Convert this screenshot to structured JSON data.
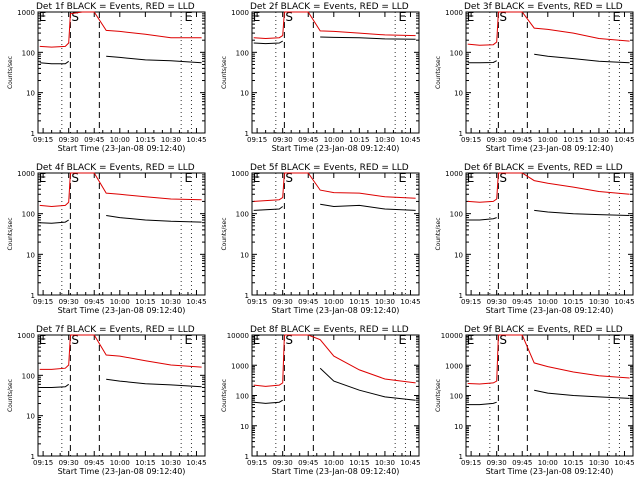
{
  "chart_data": [
    {
      "type": "line",
      "title": "Det 1f BLACK = Events, RED = LLD",
      "xlabel": "Start Time (23-Jan-08 09:12:40)",
      "ylabel": "Counts/sec",
      "ylim": [
        1,
        1000
      ],
      "log_y": true,
      "xticks": [
        "09:15",
        "09:30",
        "09:45",
        "10:00",
        "10:15",
        "10:30",
        "10:45"
      ],
      "yticks": [
        "1",
        "10",
        "100",
        "1000"
      ],
      "markers": {
        "E": "09:13",
        "S": "09:31",
        "E2": "10:38"
      },
      "series": [
        {
          "name": "BLACK = Events",
          "color": "#000000",
          "x": [
            "09:13",
            "09:20",
            "09:28",
            "09:30",
            "09:31",
            "09:48",
            "09:52",
            "10:00",
            "10:15",
            "10:30",
            "10:48"
          ],
          "values": [
            55,
            52,
            52,
            60,
            null,
            null,
            80,
            75,
            65,
            62,
            55
          ]
        },
        {
          "name": "RED = LLD",
          "color": "#dd0000",
          "x": [
            "09:13",
            "09:20",
            "09:28",
            "09:30",
            "09:31",
            "09:38",
            "09:45",
            "09:52",
            "10:00",
            "10:15",
            "10:30",
            "10:48"
          ],
          "values": [
            140,
            135,
            140,
            170,
            900,
            1000,
            1000,
            350,
            330,
            280,
            230,
            230
          ]
        }
      ]
    },
    {
      "type": "line",
      "title": "Det 2f BLACK = Events, RED = LLD",
      "xlabel": "Start Time (23-Jan-08 09:12:40)",
      "ylabel": "Counts/sec",
      "ylim": [
        1,
        1000
      ],
      "log_y": true,
      "xticks": [
        "09:15",
        "09:30",
        "09:45",
        "10:00",
        "10:15",
        "10:30",
        "10:45"
      ],
      "yticks": [
        "1",
        "10",
        "100",
        "1000"
      ],
      "markers": {
        "E": "09:13",
        "S": "09:31",
        "E2": "10:38"
      },
      "series": [
        {
          "name": "BLACK = Events",
          "color": "#000000",
          "x": [
            "09:13",
            "09:20",
            "09:28",
            "09:30",
            "09:48",
            "09:52",
            "10:00",
            "10:15",
            "10:30",
            "10:48"
          ],
          "values": [
            170,
            165,
            170,
            190,
            null,
            240,
            235,
            230,
            215,
            210
          ]
        },
        {
          "name": "RED = LLD",
          "color": "#dd0000",
          "x": [
            "09:13",
            "09:20",
            "09:28",
            "09:30",
            "09:31",
            "09:38",
            "09:45",
            "09:52",
            "10:00",
            "10:15",
            "10:30",
            "10:48"
          ],
          "values": [
            230,
            220,
            230,
            260,
            1000,
            1000,
            1000,
            340,
            330,
            300,
            270,
            260
          ]
        }
      ]
    },
    {
      "type": "line",
      "title": "Det 3f BLACK = Events, RED = LLD",
      "xlabel": "Start Time (23-Jan-08 09:12:40)",
      "ylabel": "Counts/sec",
      "ylim": [
        1,
        1000
      ],
      "log_y": true,
      "xticks": [
        "09:15",
        "09:30",
        "09:45",
        "10:00",
        "10:15",
        "10:30",
        "10:45"
      ],
      "yticks": [
        "1",
        "10",
        "100",
        "1000"
      ],
      "markers": {
        "E": "09:13",
        "S": "09:31",
        "E2": "10:38"
      },
      "series": [
        {
          "name": "BLACK = Events",
          "color": "#000000",
          "x": [
            "09:13",
            "09:20",
            "09:28",
            "09:30",
            "09:48",
            "09:52",
            "10:00",
            "10:15",
            "10:30",
            "10:48"
          ],
          "values": [
            55,
            55,
            56,
            62,
            null,
            90,
            80,
            70,
            60,
            55
          ]
        },
        {
          "name": "RED = LLD",
          "color": "#dd0000",
          "x": [
            "09:13",
            "09:20",
            "09:28",
            "09:30",
            "09:31",
            "09:38",
            "09:45",
            "09:52",
            "10:00",
            "10:15",
            "10:30",
            "10:48"
          ],
          "values": [
            160,
            150,
            155,
            180,
            1000,
            1000,
            1000,
            400,
            370,
            300,
            220,
            190
          ]
        }
      ]
    },
    {
      "type": "line",
      "title": "Det 4f BLACK = Events, RED = LLD",
      "xlabel": "Start Time (23-Jan-08 09:12:40)",
      "ylabel": "Counts/sec",
      "ylim": [
        1,
        1000
      ],
      "log_y": true,
      "xticks": [
        "09:15",
        "09:30",
        "09:45",
        "10:00",
        "10:15",
        "10:30",
        "10:45"
      ],
      "yticks": [
        "1",
        "10",
        "100",
        "1000"
      ],
      "markers": {
        "E": "09:13",
        "S": "09:31",
        "E2": "10:38"
      },
      "series": [
        {
          "name": "BLACK = Events",
          "color": "#000000",
          "x": [
            "09:13",
            "09:20",
            "09:28",
            "09:30",
            "09:48",
            "09:52",
            "10:00",
            "10:15",
            "10:30",
            "10:48"
          ],
          "values": [
            60,
            58,
            62,
            70,
            null,
            90,
            80,
            70,
            65,
            62
          ]
        },
        {
          "name": "RED = LLD",
          "color": "#dd0000",
          "x": [
            "09:13",
            "09:20",
            "09:28",
            "09:30",
            "09:31",
            "09:38",
            "09:45",
            "09:52",
            "10:00",
            "10:15",
            "10:30",
            "10:48"
          ],
          "values": [
            160,
            150,
            160,
            190,
            1000,
            1000,
            1000,
            320,
            300,
            260,
            230,
            220
          ]
        }
      ]
    },
    {
      "type": "line",
      "title": "Det 5f BLACK = Events, RED = LLD",
      "xlabel": "Start Time (23-Jan-08 09:12:40)",
      "ylabel": "Counts/sec",
      "ylim": [
        1,
        1000
      ],
      "log_y": true,
      "xticks": [
        "09:15",
        "09:30",
        "09:45",
        "10:00",
        "10:15",
        "10:30",
        "10:45"
      ],
      "yticks": [
        "1",
        "10",
        "100",
        "1000"
      ],
      "markers": {
        "E": "09:13",
        "S": "09:31",
        "E2": "10:38"
      },
      "series": [
        {
          "name": "BLACK = Events",
          "color": "#000000",
          "x": [
            "09:13",
            "09:20",
            "09:28",
            "09:30",
            "09:48",
            "09:52",
            "10:00",
            "10:15",
            "10:30",
            "10:48"
          ],
          "values": [
            120,
            125,
            130,
            150,
            null,
            170,
            150,
            160,
            130,
            120
          ]
        },
        {
          "name": "RED = LLD",
          "color": "#dd0000",
          "x": [
            "09:13",
            "09:20",
            "09:28",
            "09:30",
            "09:31",
            "09:38",
            "09:45",
            "09:52",
            "10:00",
            "10:15",
            "10:30",
            "10:48"
          ],
          "values": [
            200,
            210,
            220,
            250,
            1000,
            1000,
            1000,
            380,
            330,
            320,
            260,
            240
          ]
        }
      ]
    },
    {
      "type": "line",
      "title": "Det 6f BLACK = Events, RED = LLD",
      "xlabel": "Start Time (23-Jan-08 09:12:40)",
      "ylabel": "Counts/sec",
      "ylim": [
        1,
        1000
      ],
      "log_y": true,
      "xticks": [
        "09:15",
        "09:30",
        "09:45",
        "10:00",
        "10:15",
        "10:30",
        "10:45"
      ],
      "yticks": [
        "1",
        "10",
        "100",
        "1000"
      ],
      "markers": {
        "E": "09:13",
        "S": "09:31",
        "E2": "10:38"
      },
      "series": [
        {
          "name": "BLACK = Events",
          "color": "#000000",
          "x": [
            "09:13",
            "09:20",
            "09:28",
            "09:30",
            "09:48",
            "09:52",
            "10:00",
            "10:15",
            "10:30",
            "10:48"
          ],
          "values": [
            70,
            70,
            75,
            80,
            null,
            120,
            110,
            100,
            95,
            90
          ]
        },
        {
          "name": "RED = LLD",
          "color": "#dd0000",
          "x": [
            "09:13",
            "09:20",
            "09:28",
            "09:30",
            "09:31",
            "09:38",
            "09:45",
            "09:52",
            "10:00",
            "10:15",
            "10:30",
            "10:48"
          ],
          "values": [
            200,
            190,
            200,
            230,
            1000,
            1000,
            1000,
            650,
            560,
            450,
            350,
            300
          ]
        }
      ]
    },
    {
      "type": "line",
      "title": "Det 7f BLACK = Events, RED = LLD",
      "xlabel": "Start Time (23-Jan-08 09:12:40)",
      "ylabel": "Counts/sec",
      "ylim": [
        1,
        1000
      ],
      "log_y": true,
      "xticks": [
        "09:15",
        "09:30",
        "09:45",
        "10:00",
        "10:15",
        "10:30",
        "10:45"
      ],
      "yticks": [
        "1",
        "10",
        "100",
        "1000"
      ],
      "markers": {
        "E": "09:13",
        "S": "09:31",
        "E2": "10:38"
      },
      "series": [
        {
          "name": "BLACK = Events",
          "color": "#000000",
          "x": [
            "09:13",
            "09:20",
            "09:28",
            "09:30",
            "09:48",
            "09:52",
            "10:00",
            "10:15",
            "10:30",
            "10:48"
          ],
          "values": [
            50,
            50,
            52,
            60,
            null,
            80,
            72,
            62,
            58,
            52
          ]
        },
        {
          "name": "RED = LLD",
          "color": "#dd0000",
          "x": [
            "09:13",
            "09:20",
            "09:28",
            "09:30",
            "09:31",
            "09:38",
            "09:45",
            "09:52",
            "10:00",
            "10:15",
            "10:30",
            "10:48"
          ],
          "values": [
            140,
            140,
            150,
            180,
            1000,
            1000,
            1000,
            320,
            300,
            230,
            180,
            160
          ]
        }
      ]
    },
    {
      "type": "line",
      "title": "Det 8f BLACK = Events, RED = LLD",
      "xlabel": "Start Time (23-Jan-08 09:12:40)",
      "ylabel": "Counts/sec",
      "ylim": [
        1,
        10000
      ],
      "log_y": true,
      "xticks": [
        "09:15",
        "09:30",
        "09:45",
        "10:00",
        "10:15",
        "10:30",
        "10:45"
      ],
      "yticks": [
        "1",
        "10",
        "100",
        "1000",
        "10000"
      ],
      "markers": {
        "E": "09:13",
        "S": "09:31",
        "E2": "10:38"
      },
      "series": [
        {
          "name": "BLACK = Events",
          "color": "#000000",
          "x": [
            "09:13",
            "09:20",
            "09:28",
            "09:30",
            "09:48",
            "09:52",
            "10:00",
            "10:15",
            "10:30",
            "10:48"
          ],
          "values": [
            60,
            55,
            60,
            70,
            null,
            800,
            300,
            150,
            90,
            70
          ]
        },
        {
          "name": "RED = LLD",
          "color": "#dd0000",
          "x": [
            "09:13",
            "09:20",
            "09:28",
            "09:30",
            "09:31",
            "09:38",
            "09:45",
            "09:52",
            "10:00",
            "10:15",
            "10:30",
            "10:48"
          ],
          "values": [
            220,
            200,
            220,
            260,
            10000,
            10000,
            10000,
            7000,
            2000,
            700,
            350,
            260
          ]
        }
      ]
    },
    {
      "type": "line",
      "title": "Det 9f BLACK = Events, RED = LLD",
      "xlabel": "Start Time (23-Jan-08 09:12:40)",
      "ylabel": "Counts/sec",
      "ylim": [
        1,
        10000
      ],
      "log_y": true,
      "xticks": [
        "09:15",
        "09:30",
        "09:45",
        "10:00",
        "10:15",
        "10:30",
        "10:45"
      ],
      "yticks": [
        "1",
        "10",
        "100",
        "1000",
        "10000"
      ],
      "markers": {
        "E": "09:13",
        "S": "09:31",
        "E2": "10:38"
      },
      "series": [
        {
          "name": "BLACK = Events",
          "color": "#000000",
          "x": [
            "09:13",
            "09:20",
            "09:28",
            "09:30",
            "09:48",
            "09:52",
            "10:00",
            "10:15",
            "10:30",
            "10:48"
          ],
          "values": [
            50,
            50,
            55,
            60,
            null,
            150,
            120,
            100,
            90,
            80
          ]
        },
        {
          "name": "RED = LLD",
          "color": "#dd0000",
          "x": [
            "09:13",
            "09:20",
            "09:28",
            "09:30",
            "09:31",
            "09:38",
            "09:45",
            "09:52",
            "10:00",
            "10:15",
            "10:30",
            "10:48"
          ],
          "values": [
            250,
            240,
            260,
            300,
            10000,
            10000,
            10000,
            1200,
            900,
            600,
            450,
            380
          ]
        }
      ]
    }
  ]
}
